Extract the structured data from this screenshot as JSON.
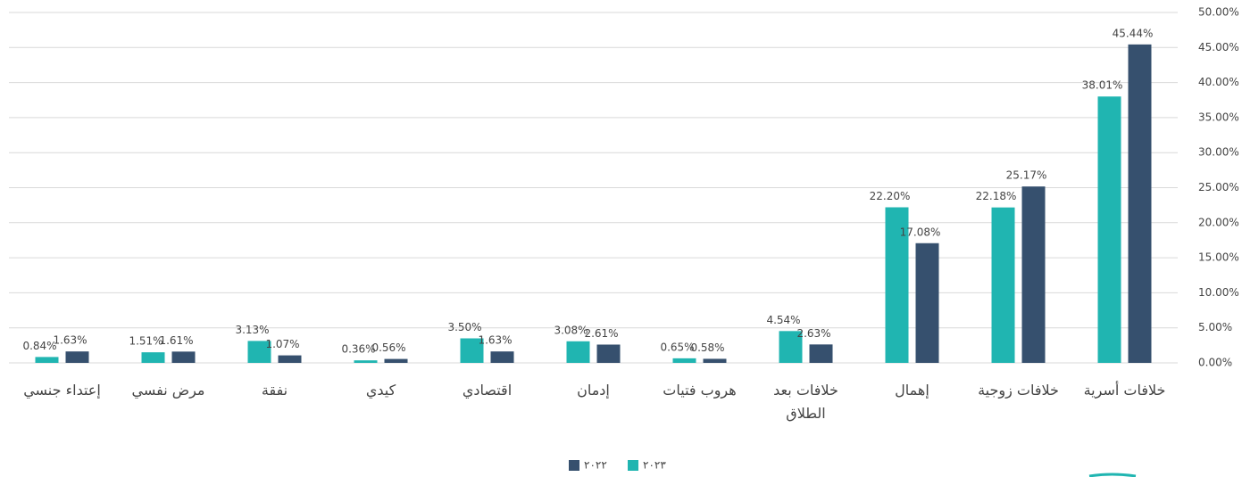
{
  "chart_data": {
    "type": "bar",
    "categories": [
      "إعتداء جنسي",
      "مرض نفسي",
      "نفقة",
      "كيدي",
      "اقتصادي",
      "إدمان",
      "هروب فتيات",
      "خلافات بعد الطلاق",
      "إهمال",
      "خلافات زوجية",
      "خلافات أسرية"
    ],
    "series": [
      {
        "name": "٢٠٢٣",
        "color": "#20b5b1",
        "values": [
          0.84,
          1.51,
          3.13,
          0.36,
          3.5,
          3.08,
          0.65,
          4.54,
          22.2,
          22.18,
          38.01
        ],
        "value_labels": [
          "0.84%",
          "1.51%",
          "3.13%",
          "0.36%",
          "3.50%",
          "3.08%",
          "0.65%",
          "4.54%",
          "22.20%",
          "22.18%",
          "38.01%"
        ]
      },
      {
        "name": "٢٠٢٢",
        "color": "#36506e",
        "values": [
          1.63,
          1.61,
          1.07,
          0.56,
          1.63,
          2.61,
          0.58,
          2.63,
          17.08,
          25.17,
          45.44
        ],
        "value_labels": [
          "1.63%",
          "1.61%",
          "1.07%",
          "0.56%",
          "1.63%",
          "2.61%",
          "0.58%",
          "2.63%",
          "17.08%",
          "25.17%",
          "45.44%"
        ]
      }
    ],
    "ylim": [
      0,
      50
    ],
    "yticks": [
      {
        "value": 0,
        "label": "0.00%"
      },
      {
        "value": 5,
        "label": "5.00%"
      },
      {
        "value": 10,
        "label": "10.00%"
      },
      {
        "value": 15,
        "label": "15.00%"
      },
      {
        "value": 20,
        "label": "20.00%"
      },
      {
        "value": 25,
        "label": "25.00%"
      },
      {
        "value": 30,
        "label": "30.00%"
      },
      {
        "value": 35,
        "label": "35.00%"
      },
      {
        "value": 40,
        "label": "40.00%"
      },
      {
        "value": 45,
        "label": "45.00%"
      },
      {
        "value": 50,
        "label": "50.00%"
      }
    ],
    "grid": true,
    "legend": "bottom"
  }
}
